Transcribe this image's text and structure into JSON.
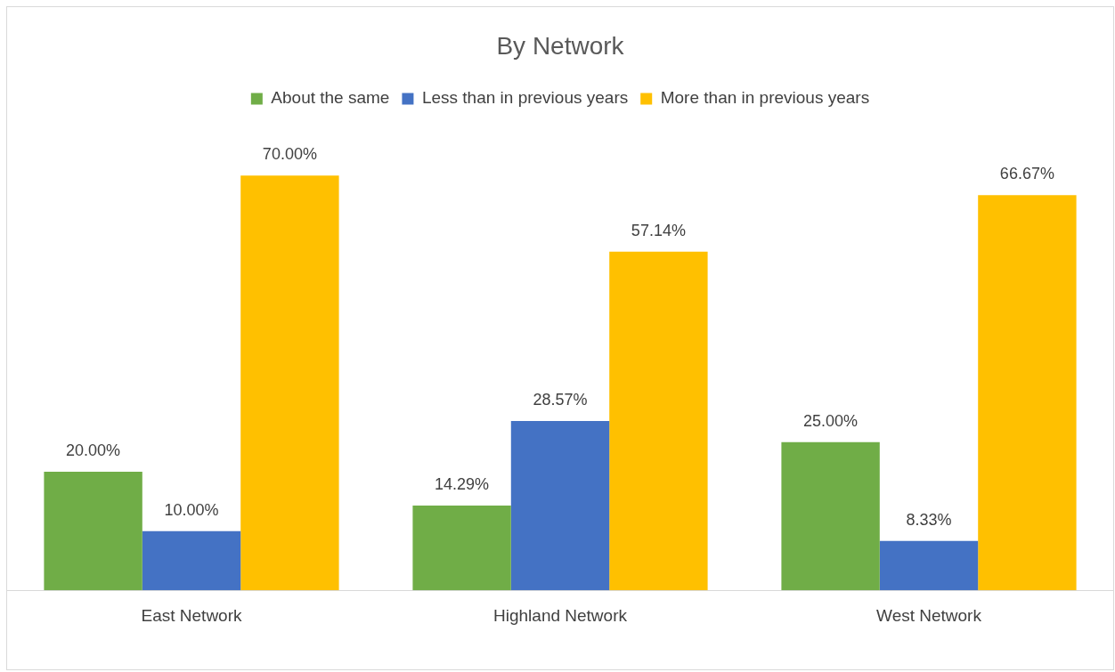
{
  "chart_data": {
    "type": "bar",
    "title": "By Network",
    "categories": [
      "East Network",
      "Highland Network",
      "West Network"
    ],
    "legend": "top",
    "grid": false,
    "series": [
      {
        "name": "About the same",
        "color": "#70ad47",
        "values": [
          20,
          14.29,
          25
        ],
        "value_labels": [
          "20.00%",
          "14.29%",
          "25.00%"
        ]
      },
      {
        "name": "Less than in previous years",
        "color": "#4472c4",
        "values": [
          10,
          28.57,
          8.33
        ],
        "value_labels": [
          "10.00%",
          "28.57%",
          "8.33%"
        ]
      },
      {
        "name": "More than in previous years",
        "color": "#ffc000",
        "values": [
          70,
          57.14,
          66.67
        ],
        "value_labels": [
          "70.00%",
          "57.14%",
          "66.67%"
        ]
      }
    ]
  }
}
